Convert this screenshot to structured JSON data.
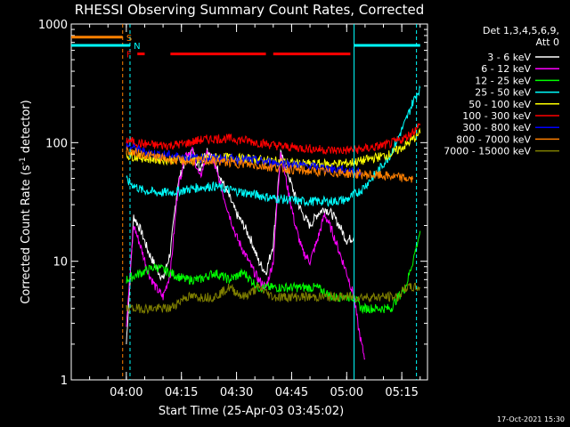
{
  "chart_data": {
    "type": "line",
    "title": "RHESSI Observing Summary Count Rates, Corrected",
    "xlabel": "Start Time (25-Apr-03 03:45:02)",
    "ylabel_main": "Corrected Count Rate (s",
    "ylabel_exponent": "-1",
    "ylabel_tail": " detector)",
    "y_scale": "log",
    "ylim": [
      1,
      1000
    ],
    "xlim_minutes": [
      -15,
      32
    ],
    "yticks": [
      {
        "value": 1,
        "label": "1"
      },
      {
        "value": 10,
        "label": "10"
      },
      {
        "value": 100,
        "label": "100"
      },
      {
        "value": 1000,
        "label": "1000"
      }
    ],
    "xticks": [
      {
        "minutes": 0,
        "label": "04:00"
      },
      {
        "minutes": 15,
        "label": "04:15"
      },
      {
        "minutes": 30,
        "label": "04:30"
      },
      {
        "minutes": 45,
        "label": "04:45"
      },
      {
        "minutes": 60,
        "label": "05:00"
      },
      {
        "minutes": 75,
        "label": "05:15"
      }
    ],
    "x_range_minutes": [
      -15,
      82
    ],
    "legend_header": {
      "detectors": "Det 1,3,4,5,6,9,",
      "attenuator": "Att 0"
    },
    "legend_placement": "right",
    "timestamp": "17-Oct-2021 15:30",
    "series": [
      {
        "name": "3 - 6 keV",
        "color": "#ffffff",
        "x": [
          0,
          2,
          4,
          6,
          8,
          10,
          12,
          14,
          16,
          18,
          20,
          22,
          24,
          26,
          28,
          30,
          32,
          34,
          36,
          38,
          40,
          42,
          44,
          46,
          48,
          50,
          52,
          54,
          56,
          58,
          60,
          62
        ],
        "y": [
          2,
          24,
          18,
          12,
          9,
          7,
          12,
          45,
          70,
          85,
          60,
          88,
          70,
          48,
          35,
          25,
          20,
          15,
          10,
          8,
          14,
          80,
          55,
          35,
          25,
          20,
          25,
          28,
          25,
          20,
          15,
          16
        ]
      },
      {
        "name": "6 - 12 keV",
        "color": "#ff00ff",
        "x": [
          0,
          2,
          4,
          6,
          8,
          10,
          12,
          14,
          16,
          18,
          20,
          22,
          24,
          26,
          28,
          30,
          32,
          34,
          36,
          38,
          40,
          42,
          44,
          46,
          48,
          50,
          52,
          54,
          56,
          58,
          60,
          62,
          63,
          64,
          65
        ],
        "y": [
          3,
          20,
          13,
          8,
          6,
          5,
          8,
          40,
          80,
          85,
          50,
          80,
          65,
          40,
          25,
          16,
          12,
          9,
          7,
          6,
          10,
          85,
          40,
          20,
          12,
          10,
          15,
          25,
          18,
          12,
          8,
          5,
          3,
          2,
          1.5
        ]
      },
      {
        "name": "12 - 25 keV",
        "color": "#00ff00",
        "x": [
          0,
          4,
          8,
          12,
          16,
          20,
          24,
          28,
          32,
          36,
          40,
          44,
          48,
          52,
          56,
          60,
          62,
          64,
          66,
          68,
          70,
          72,
          74,
          76,
          78,
          80
        ],
        "y": [
          7,
          8,
          9,
          8,
          7,
          7,
          8,
          7,
          8,
          6,
          6,
          6,
          6,
          6,
          5,
          5,
          5,
          4,
          4,
          4,
          4,
          4,
          5,
          6,
          10,
          18
        ]
      },
      {
        "name": "25 - 50 keV",
        "color": "#00ffff",
        "x": [
          0,
          4,
          8,
          12,
          16,
          20,
          24,
          28,
          32,
          36,
          40,
          44,
          48,
          52,
          56,
          60,
          64,
          68,
          72,
          76,
          78,
          80
        ],
        "y": [
          48,
          40,
          38,
          38,
          40,
          42,
          43,
          40,
          38,
          36,
          34,
          33,
          32,
          32,
          32,
          33,
          40,
          55,
          80,
          150,
          220,
          290
        ]
      },
      {
        "name": "50 - 100 keV",
        "color": "#ffff00",
        "x": [
          0,
          4,
          8,
          12,
          16,
          20,
          24,
          28,
          32,
          36,
          40,
          44,
          48,
          52,
          56,
          60,
          64,
          68,
          72,
          76,
          80
        ],
        "y": [
          78,
          75,
          72,
          72,
          72,
          73,
          75,
          75,
          73,
          72,
          70,
          68,
          66,
          66,
          66,
          67,
          70,
          75,
          80,
          95,
          120
        ]
      },
      {
        "name": "100 - 300 keV",
        "color": "#ff0000",
        "x": [
          0,
          4,
          8,
          12,
          16,
          20,
          24,
          28,
          32,
          36,
          40,
          44,
          48,
          52,
          56,
          60,
          64,
          68,
          72,
          76,
          80
        ],
        "y": [
          105,
          98,
          95,
          95,
          98,
          105,
          108,
          108,
          105,
          100,
          95,
          92,
          90,
          88,
          86,
          86,
          88,
          92,
          98,
          110,
          140
        ]
      },
      {
        "name": "300 - 800 keV",
        "color": "#0000ff",
        "x": [
          0,
          4,
          8,
          12,
          16,
          20,
          24,
          28,
          32,
          36,
          40,
          44,
          48,
          52,
          56,
          60,
          64
        ],
        "y": [
          95,
          85,
          80,
          78,
          75,
          74,
          74,
          73,
          72,
          70,
          68,
          66,
          64,
          62,
          60,
          58,
          56
        ]
      },
      {
        "name": "800 - 7000 keV",
        "color": "#ff8000",
        "x": [
          0,
          4,
          8,
          12,
          16,
          20,
          24,
          28,
          32,
          36,
          40,
          44,
          48,
          52,
          56,
          60,
          64,
          68,
          72,
          76,
          78
        ],
        "y": [
          85,
          80,
          76,
          72,
          70,
          70,
          70,
          68,
          66,
          64,
          62,
          60,
          58,
          57,
          56,
          55,
          54,
          53,
          52,
          50,
          49
        ]
      },
      {
        "name": "7000 - 15000 keV",
        "color": "#808000",
        "x": [
          0,
          4,
          8,
          12,
          16,
          20,
          24,
          28,
          32,
          36,
          40,
          44,
          48,
          52,
          56,
          60,
          62,
          64,
          66,
          68,
          70,
          72,
          74,
          76,
          78,
          80
        ],
        "y": [
          4,
          4,
          4,
          4,
          5,
          5,
          5,
          6,
          5,
          6,
          5,
          5,
          5,
          5,
          5,
          5,
          5,
          5,
          5,
          5,
          5,
          5,
          5,
          6,
          6,
          6
        ]
      }
    ],
    "markers": [
      {
        "minutes": -1,
        "color": "#ff8000",
        "style": "dashed"
      },
      {
        "minutes": 1,
        "color": "#00ffff",
        "style": "dashed"
      },
      {
        "minutes": 62,
        "color": "#00ffff",
        "style": "solid"
      },
      {
        "minutes": 79,
        "color": "#00ffff",
        "style": "dashed"
      }
    ],
    "flags": [
      {
        "label": "S",
        "color": "#ff8000",
        "level": 775,
        "segments": [
          [
            -15,
            -1
          ]
        ]
      },
      {
        "label": "N",
        "color": "#00ffff",
        "level": 660,
        "segments": [
          [
            -15,
            1
          ],
          [
            62,
            80
          ]
        ]
      },
      {
        "label": "F",
        "color": "#ff0000",
        "level": 560,
        "segments": [
          [
            3,
            5
          ],
          [
            12,
            38
          ],
          [
            40,
            61
          ]
        ]
      }
    ]
  }
}
